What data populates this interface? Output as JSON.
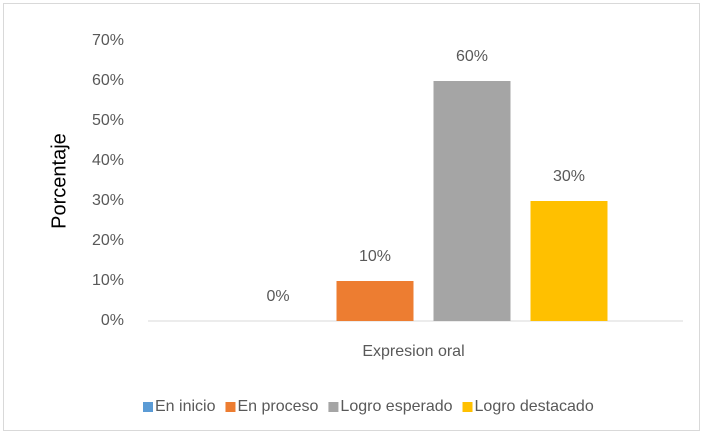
{
  "chart_data": {
    "type": "bar",
    "y_label": "Porcentaje",
    "categories": [
      "Expresion oral"
    ],
    "series": [
      {
        "name": "En inicio",
        "color": "#5b9bd5",
        "values": [
          0
        ],
        "value_labels": [
          "0%"
        ]
      },
      {
        "name": "En proceso",
        "color": "#ed7d31",
        "values": [
          10
        ],
        "value_labels": [
          "10%"
        ]
      },
      {
        "name": "Logro esperado",
        "color": "#a5a5a5",
        "values": [
          60
        ],
        "value_labels": [
          "60%"
        ]
      },
      {
        "name": "Logro destacado",
        "color": "#ffc000",
        "values": [
          30
        ],
        "value_labels": [
          "30%"
        ]
      }
    ],
    "ylim": [
      0,
      70
    ],
    "yticks": [
      {
        "value": 0,
        "label": "0%"
      },
      {
        "value": 10,
        "label": "10%"
      },
      {
        "value": 20,
        "label": "20%"
      },
      {
        "value": 30,
        "label": "30%"
      },
      {
        "value": 40,
        "label": "40%"
      },
      {
        "value": 50,
        "label": "50%"
      },
      {
        "value": 60,
        "label": "60%"
      },
      {
        "value": 70,
        "label": "70%"
      }
    ],
    "grid": false,
    "legend": "bottom"
  }
}
